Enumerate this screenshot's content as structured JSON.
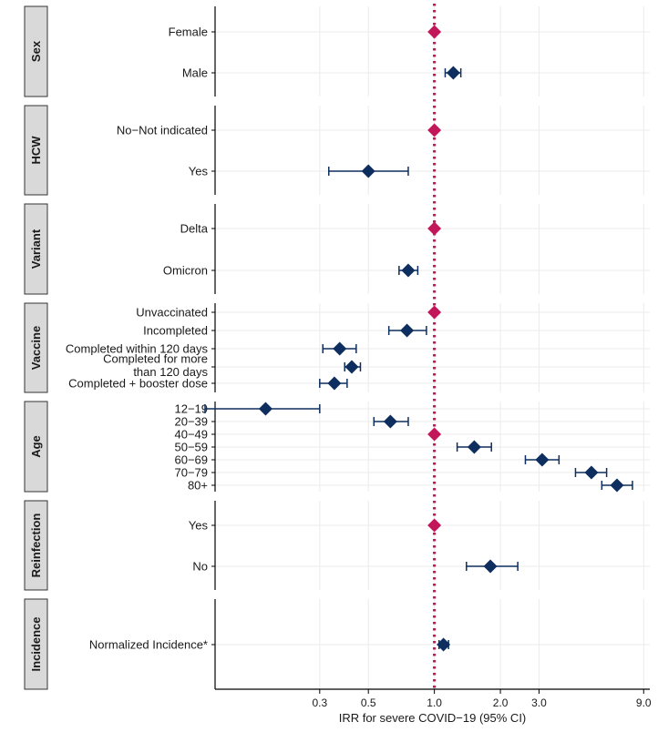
{
  "chart_data": {
    "type": "forest",
    "xlabel": "IRR for severe COVID−19 (95% CI)",
    "x_scale": "log",
    "xlim": [
      0.1,
      9.6
    ],
    "x_ticks": [
      {
        "value": 0.3,
        "label": "0.3"
      },
      {
        "value": 0.5,
        "label": "0.5"
      },
      {
        "value": 1.0,
        "label": "1.0"
      },
      {
        "value": 2.0,
        "label": "2.0"
      },
      {
        "value": 3.0,
        "label": "3.0"
      },
      {
        "value": 9.0,
        "label": "9.0"
      }
    ],
    "reference_line": 1.0,
    "colors": {
      "reference": "#c2185b",
      "estimate": "#0d2e5e",
      "strip_fill": "#d9d9d9",
      "grid": "#ebebeb"
    },
    "panels": [
      {
        "name": "Sex",
        "rows": [
          {
            "label": "Female",
            "est": 1.0,
            "lo": 1.0,
            "hi": 1.0,
            "ref": true
          },
          {
            "label": "Male",
            "est": 1.22,
            "lo": 1.12,
            "hi": 1.32,
            "ref": false
          }
        ]
      },
      {
        "name": "HCW",
        "rows": [
          {
            "label": "No−Not indicated",
            "est": 1.0,
            "lo": 1.0,
            "hi": 1.0,
            "ref": true
          },
          {
            "label": "Yes",
            "est": 0.5,
            "lo": 0.33,
            "hi": 0.76,
            "ref": false
          }
        ]
      },
      {
        "name": "Variant",
        "rows": [
          {
            "label": "Delta",
            "est": 1.0,
            "lo": 1.0,
            "hi": 1.0,
            "ref": true
          },
          {
            "label": "Omicron",
            "est": 0.76,
            "lo": 0.69,
            "hi": 0.84,
            "ref": false
          }
        ]
      },
      {
        "name": "Vaccine",
        "rows": [
          {
            "label": "Unvaccinated",
            "est": 1.0,
            "lo": 1.0,
            "hi": 1.0,
            "ref": true
          },
          {
            "label": "Incompleted",
            "est": 0.75,
            "lo": 0.62,
            "hi": 0.92,
            "ref": false
          },
          {
            "label": "Completed within 120 days",
            "est": 0.37,
            "lo": 0.31,
            "hi": 0.44,
            "ref": false
          },
          {
            "label": [
              "Completed for more",
              "than 120 days"
            ],
            "est": 0.42,
            "lo": 0.39,
            "hi": 0.46,
            "ref": false
          },
          {
            "label": "Completed + booster dose",
            "est": 0.35,
            "lo": 0.3,
            "hi": 0.4,
            "ref": false
          }
        ]
      },
      {
        "name": "Age",
        "rows": [
          {
            "label": "12−19",
            "est": 0.17,
            "lo": 0.09,
            "hi": 0.3,
            "ref": false
          },
          {
            "label": "20−39",
            "est": 0.63,
            "lo": 0.53,
            "hi": 0.76,
            "ref": false
          },
          {
            "label": "40−49",
            "est": 1.0,
            "lo": 1.0,
            "hi": 1.0,
            "ref": true
          },
          {
            "label": "50−59",
            "est": 1.52,
            "lo": 1.27,
            "hi": 1.82,
            "ref": false
          },
          {
            "label": "60−69",
            "est": 3.1,
            "lo": 2.6,
            "hi": 3.7,
            "ref": false
          },
          {
            "label": "70−79",
            "est": 5.2,
            "lo": 4.4,
            "hi": 6.1,
            "ref": false
          },
          {
            "label": "80+",
            "est": 6.8,
            "lo": 5.8,
            "hi": 8.0,
            "ref": false
          }
        ]
      },
      {
        "name": "Reinfection",
        "rows": [
          {
            "label": "Yes",
            "est": 1.0,
            "lo": 1.0,
            "hi": 1.0,
            "ref": true
          },
          {
            "label": "No",
            "est": 1.8,
            "lo": 1.4,
            "hi": 2.4,
            "ref": false
          }
        ]
      },
      {
        "name": "Incidence",
        "rows": [
          {
            "label": "Normalized Incidence*",
            "est": 1.1,
            "lo": 1.05,
            "hi": 1.16,
            "ref": false
          }
        ]
      }
    ]
  }
}
